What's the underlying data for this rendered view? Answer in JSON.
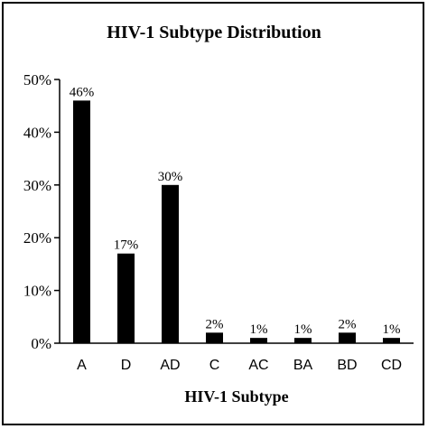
{
  "chart_data": {
    "type": "bar",
    "title": "HIV-1 Subtype Distribution",
    "xlabel": "HIV-1 Subtype",
    "ylabel": "",
    "categories": [
      "A",
      "D",
      "AD",
      "C",
      "AC",
      "BA",
      "BD",
      "CD"
    ],
    "values": [
      46,
      17,
      30,
      2,
      1,
      1,
      2,
      1
    ],
    "data_labels": [
      "46%",
      "17%",
      "30%",
      "2%",
      "1%",
      "1%",
      "2%",
      "1%"
    ],
    "y_ticks": [
      "0%",
      "10%",
      "20%",
      "30%",
      "40%",
      "50%"
    ],
    "y_tick_values": [
      0,
      10,
      20,
      30,
      40,
      50
    ],
    "ylim": [
      0,
      50
    ],
    "grid": false,
    "legend": "none",
    "bar_color": "#000000"
  }
}
